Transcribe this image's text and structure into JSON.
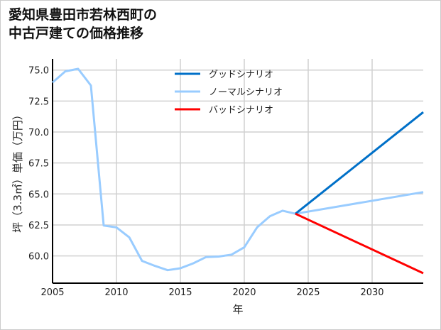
{
  "chart_data": {
    "type": "line",
    "title_lines": [
      "愛知県豊田市若林西町の",
      "中古戸建ての価格推移"
    ],
    "xlabel": "年",
    "ylabel": "坪（3.3㎡）単価（万円）",
    "xlim": [
      2005,
      2034
    ],
    "ylim": [
      57.8,
      75.9
    ],
    "xticks": [
      2005,
      2010,
      2015,
      2020,
      2025,
      2030
    ],
    "yticks": [
      60.0,
      62.5,
      65.0,
      67.5,
      70.0,
      72.5,
      75.0
    ],
    "grid": true,
    "legend_position": "top-center",
    "series": [
      {
        "name": "グッドシナリオ",
        "color": "#0070c8",
        "x": [
          2024,
          2034
        ],
        "y": [
          63.4,
          71.6
        ]
      },
      {
        "name": "ノーマルシナリオ",
        "color": "#99ccff",
        "x": [
          2005,
          2006,
          2007,
          2008,
          2009,
          2010,
          2011,
          2012,
          2013,
          2014,
          2015,
          2016,
          2017,
          2018,
          2019,
          2020,
          2021,
          2022,
          2023,
          2024,
          2034
        ],
        "y": [
          74.0,
          74.9,
          75.1,
          73.75,
          62.45,
          62.3,
          61.5,
          59.6,
          59.2,
          58.85,
          59.0,
          59.4,
          59.9,
          59.95,
          60.1,
          60.7,
          62.3,
          63.2,
          63.65,
          63.4,
          65.15
        ]
      },
      {
        "name": "バッドシナリオ",
        "color": "#ff0000",
        "x": [
          2024,
          2034
        ],
        "y": [
          63.4,
          58.6
        ]
      }
    ]
  }
}
